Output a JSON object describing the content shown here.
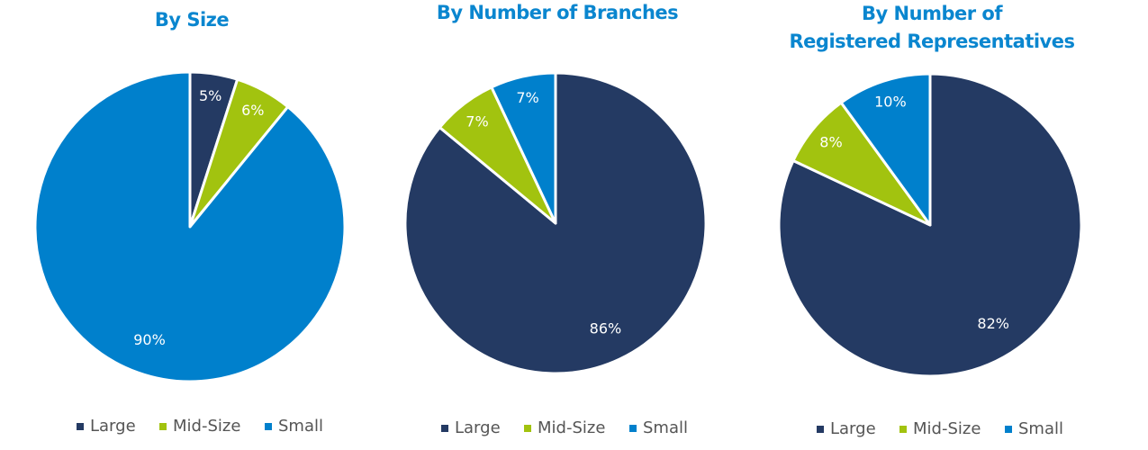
{
  "chart_data": [
    {
      "type": "pie",
      "title": "By Size",
      "categories": [
        "Large",
        "Mid-Size",
        "Small"
      ],
      "values": [
        5,
        6,
        90
      ],
      "labels": [
        "5%",
        "6%",
        "90%"
      ],
      "legend": "bottom",
      "colors": [
        "#243a63",
        "#a2c30f",
        "#0080cc"
      ]
    },
    {
      "type": "pie",
      "title": "By Number of Branches",
      "categories": [
        "Large",
        "Mid-Size",
        "Small"
      ],
      "values": [
        86,
        7,
        7
      ],
      "labels": [
        "86%",
        "7%",
        "7%"
      ],
      "legend": "bottom",
      "colors": [
        "#243a63",
        "#a2c30f",
        "#0080cc"
      ]
    },
    {
      "type": "pie",
      "title": "By Number of\nRegistered Representatives",
      "title_lines": [
        "By Number of",
        "Registered Representatives"
      ],
      "categories": [
        "Large",
        "Mid-Size",
        "Small"
      ],
      "values": [
        82,
        8,
        10
      ],
      "labels": [
        "82%",
        "8%",
        "10%"
      ],
      "legend": "bottom",
      "colors": [
        "#243a63",
        "#a2c30f",
        "#0080cc"
      ]
    }
  ]
}
